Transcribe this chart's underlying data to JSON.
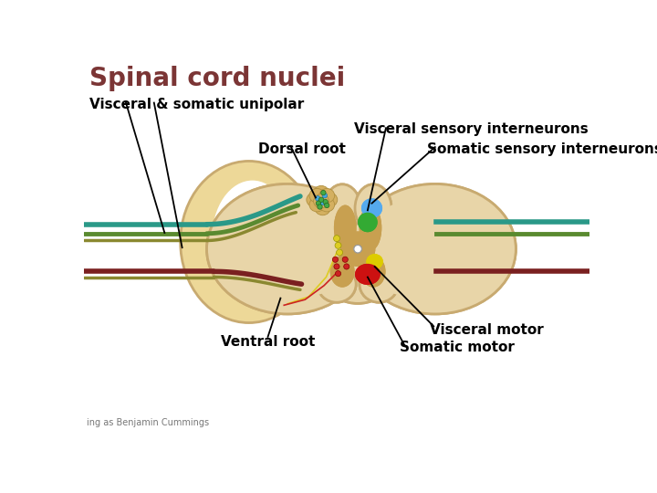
{
  "title": "Spinal cord nuclei",
  "title_color": "#7B3535",
  "title_fontsize": 20,
  "bg_color": "#FFFFFF",
  "labels": {
    "visceral_somatic_unipolar": "Visceral & somatic unipolar",
    "dorsal_root": "Dorsal root",
    "ventral_root": "Ventral root",
    "visceral_sensory": "Visceral sensory interneurons",
    "somatic_sensory": "Somatic sensory interneurons",
    "visceral_motor": "Visceral motor",
    "somatic_motor": "Somatic motor",
    "copyright": "ing as Benjamin Cummings"
  },
  "label_fontsize": 11,
  "label_color": "#000000",
  "body_color": "#E8D5A8",
  "body_edge": "#C8AA70",
  "gray_color": "#C8A050",
  "canal_color": "#FFFFFF",
  "nerve_teal": "#2A9988",
  "nerve_green": "#5A8A30",
  "nerve_olive": "#8A8830",
  "nerve_darkred": "#7A2020",
  "ganglion_color": "#D4B060",
  "ganglion_edge": "#B09040",
  "dot_blue": "#44AADD",
  "dot_green": "#44AA44",
  "dot_yellow": "#DDCC22",
  "dot_red": "#CC2222",
  "nuc_blue": "#55AAEE",
  "nuc_green": "#33AA33",
  "nuc_yellow": "#DDCC00",
  "nuc_red": "#CC1111"
}
